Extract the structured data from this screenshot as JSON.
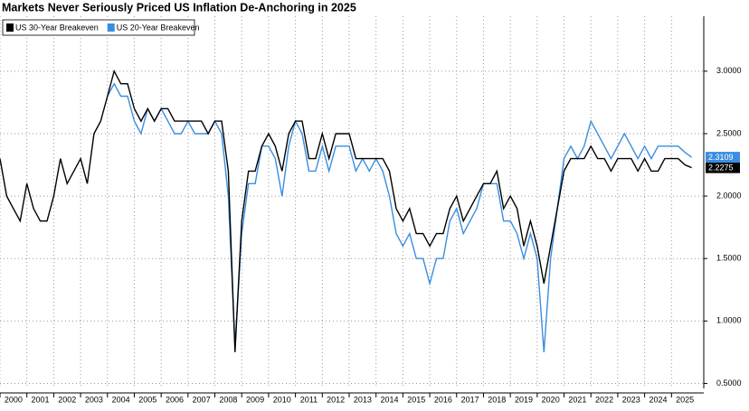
{
  "chart_data": {
    "type": "line",
    "title": "Markets Never Seriously Priced US Inflation De-Anchoring in 2025",
    "x": [
      2000,
      2000.25,
      2000.5,
      2000.75,
      2001,
      2001.25,
      2001.5,
      2001.75,
      2002,
      2002.25,
      2002.5,
      2002.75,
      2003,
      2003.25,
      2003.5,
      2003.75,
      2004,
      2004.25,
      2004.5,
      2004.75,
      2005,
      2005.25,
      2005.5,
      2005.75,
      2006,
      2006.25,
      2006.5,
      2006.75,
      2007,
      2007.25,
      2007.5,
      2007.75,
      2008,
      2008.25,
      2008.5,
      2008.75,
      2009,
      2009.25,
      2009.5,
      2009.75,
      2010,
      2010.25,
      2010.5,
      2010.75,
      2011,
      2011.25,
      2011.5,
      2011.75,
      2012,
      2012.25,
      2012.5,
      2012.75,
      2013,
      2013.25,
      2013.5,
      2013.75,
      2014,
      2014.25,
      2014.5,
      2014.75,
      2015,
      2015.25,
      2015.5,
      2015.75,
      2016,
      2016.25,
      2016.5,
      2016.75,
      2017,
      2017.25,
      2017.5,
      2017.75,
      2018,
      2018.25,
      2018.5,
      2018.75,
      2019,
      2019.25,
      2019.5,
      2019.75,
      2020,
      2020.25,
      2020.5,
      2020.75,
      2021,
      2021.25,
      2021.5,
      2021.75,
      2022,
      2022.25,
      2022.5,
      2022.75,
      2023,
      2023.25,
      2023.5,
      2023.75,
      2024,
      2024.25,
      2024.5,
      2024.75,
      2025,
      2025.25,
      2025.5,
      2025.75
    ],
    "series": [
      {
        "name": "US 30-Year Breakeven",
        "color": "#000000",
        "last_value": 2.2275,
        "values": [
          2.3,
          2.0,
          1.9,
          1.8,
          2.1,
          1.9,
          1.8,
          1.8,
          2.0,
          2.3,
          2.1,
          2.2,
          2.3,
          2.1,
          2.5,
          2.6,
          2.8,
          3.0,
          2.9,
          2.9,
          2.7,
          2.6,
          2.7,
          2.6,
          2.7,
          2.7,
          2.6,
          2.6,
          2.6,
          2.6,
          2.6,
          2.5,
          2.6,
          2.6,
          2.2,
          0.75,
          1.8,
          2.2,
          2.2,
          2.4,
          2.5,
          2.4,
          2.2,
          2.5,
          2.6,
          2.6,
          2.3,
          2.3,
          2.5,
          2.3,
          2.5,
          2.5,
          2.5,
          2.3,
          2.3,
          2.3,
          2.3,
          2.3,
          2.2,
          1.9,
          1.8,
          1.9,
          1.7,
          1.7,
          1.6,
          1.7,
          1.7,
          1.9,
          2.0,
          1.8,
          1.9,
          2.0,
          2.1,
          2.1,
          2.2,
          1.9,
          2.0,
          1.9,
          1.6,
          1.8,
          1.6,
          1.3,
          1.6,
          1.9,
          2.2,
          2.3,
          2.3,
          2.3,
          2.4,
          2.3,
          2.3,
          2.2,
          2.3,
          2.3,
          2.3,
          2.2,
          2.3,
          2.2,
          2.2,
          2.3,
          2.3,
          2.3,
          2.25,
          2.2275
        ]
      },
      {
        "name": "US 20-Year Breakeven",
        "color": "#3a8ee0",
        "last_value": 2.3109,
        "values": [
          null,
          null,
          null,
          null,
          null,
          null,
          null,
          null,
          null,
          null,
          null,
          null,
          null,
          null,
          null,
          null,
          2.8,
          2.9,
          2.8,
          2.8,
          2.6,
          2.5,
          2.7,
          2.6,
          2.7,
          2.6,
          2.5,
          2.5,
          2.6,
          2.5,
          2.5,
          2.5,
          2.6,
          2.5,
          2.0,
          0.8,
          1.7,
          2.1,
          2.1,
          2.4,
          2.4,
          2.3,
          2.0,
          2.4,
          2.6,
          2.5,
          2.2,
          2.2,
          2.4,
          2.2,
          2.4,
          2.4,
          2.4,
          2.2,
          2.3,
          2.2,
          2.3,
          2.2,
          2.0,
          1.7,
          1.6,
          1.7,
          1.5,
          1.5,
          1.3,
          1.5,
          1.5,
          1.8,
          1.9,
          1.7,
          1.8,
          1.9,
          2.1,
          2.1,
          2.1,
          1.8,
          1.8,
          1.7,
          1.5,
          1.7,
          1.5,
          0.75,
          1.5,
          1.9,
          2.3,
          2.4,
          2.3,
          2.4,
          2.6,
          2.5,
          2.4,
          2.3,
          2.4,
          2.5,
          2.4,
          2.3,
          2.4,
          2.3,
          2.4,
          2.4,
          2.4,
          2.4,
          2.35,
          2.3109
        ]
      }
    ],
    "xlim": [
      2000,
      2026
    ],
    "xticks": [
      2000,
      2001,
      2002,
      2003,
      2004,
      2005,
      2006,
      2007,
      2008,
      2009,
      2010,
      2011,
      2012,
      2013,
      2014,
      2015,
      2016,
      2017,
      2018,
      2019,
      2020,
      2021,
      2022,
      2023,
      2024,
      2025
    ],
    "ylim": [
      0.46,
      3.44
    ],
    "yticks": [
      {
        "value": 0.5,
        "label": "0.5000"
      },
      {
        "value": 1.0,
        "label": "1.0000"
      },
      {
        "value": 1.5,
        "label": "1.5000"
      },
      {
        "value": 2.0,
        "label": "2.0000"
      },
      {
        "value": 2.5,
        "label": "2.5000"
      },
      {
        "value": 3.0,
        "label": "3.0000"
      }
    ],
    "grid": true
  }
}
